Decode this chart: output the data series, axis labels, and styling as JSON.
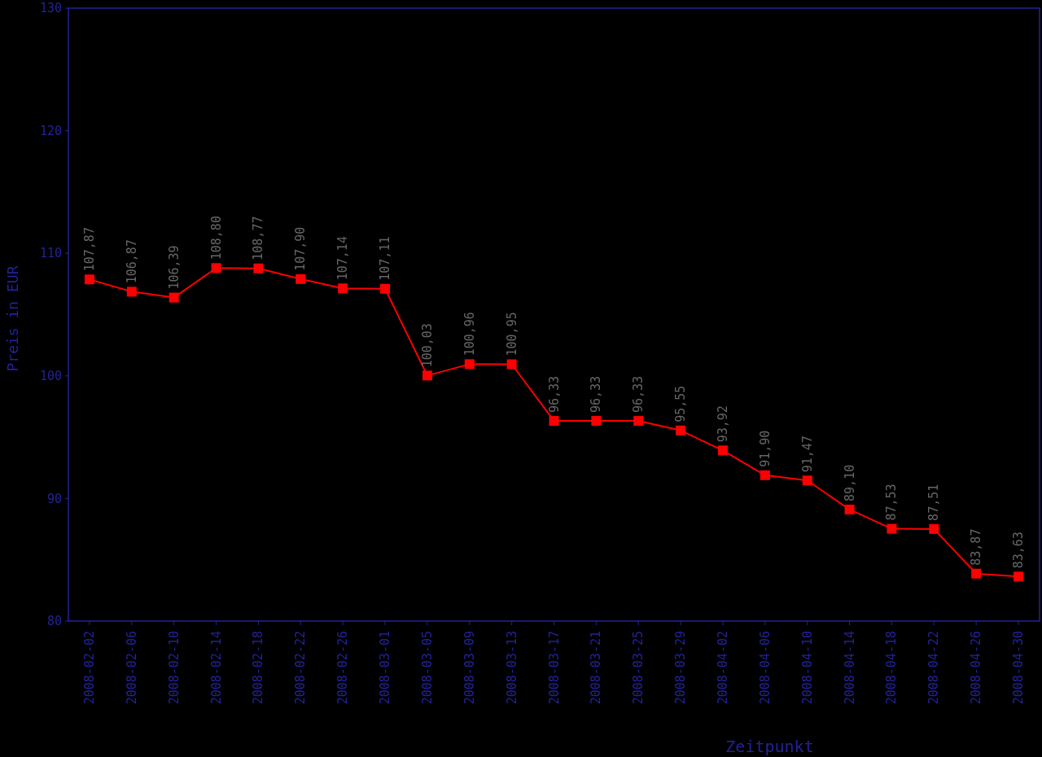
{
  "chart_data": {
    "type": "line",
    "xlabel": "Zeitpunkt",
    "ylabel": "Preis in EUR",
    "categories": [
      "2008-02-02",
      "2008-02-06",
      "2008-02-10",
      "2008-02-14",
      "2008-02-18",
      "2008-02-22",
      "2008-02-26",
      "2008-03-01",
      "2008-03-05",
      "2008-03-09",
      "2008-03-13",
      "2008-03-17",
      "2008-03-21",
      "2008-03-25",
      "2008-03-29",
      "2008-04-02",
      "2008-04-06",
      "2008-04-10",
      "2008-04-14",
      "2008-04-18",
      "2008-04-22",
      "2008-04-26",
      "2008-04-30"
    ],
    "series": [
      {
        "color": "#ff0000",
        "values": [
          107.87,
          106.87,
          106.39,
          108.8,
          108.77,
          107.9,
          107.14,
          107.11,
          100.03,
          100.96,
          100.95,
          96.33,
          96.33,
          96.33,
          95.55,
          93.92,
          91.9,
          91.47,
          89.1,
          87.53,
          87.51,
          83.87,
          83.63
        ],
        "value_labels": [
          "107,87",
          "106,87",
          "106,39",
          "108,80",
          "108,77",
          "107,90",
          "107,14",
          "107,11",
          "100,03",
          "100,96",
          "100,95",
          "96,33",
          "96,33",
          "96,33",
          "95,55",
          "93,92",
          "91,90",
          "91,47",
          "89,10",
          "87,53",
          "87,51",
          "83,87",
          "83,63"
        ]
      }
    ],
    "ylim": [
      80,
      130
    ],
    "yticks": [
      80,
      90,
      100,
      110,
      120,
      130
    ],
    "marker": "square",
    "line_style": "solid",
    "grid": false
  }
}
